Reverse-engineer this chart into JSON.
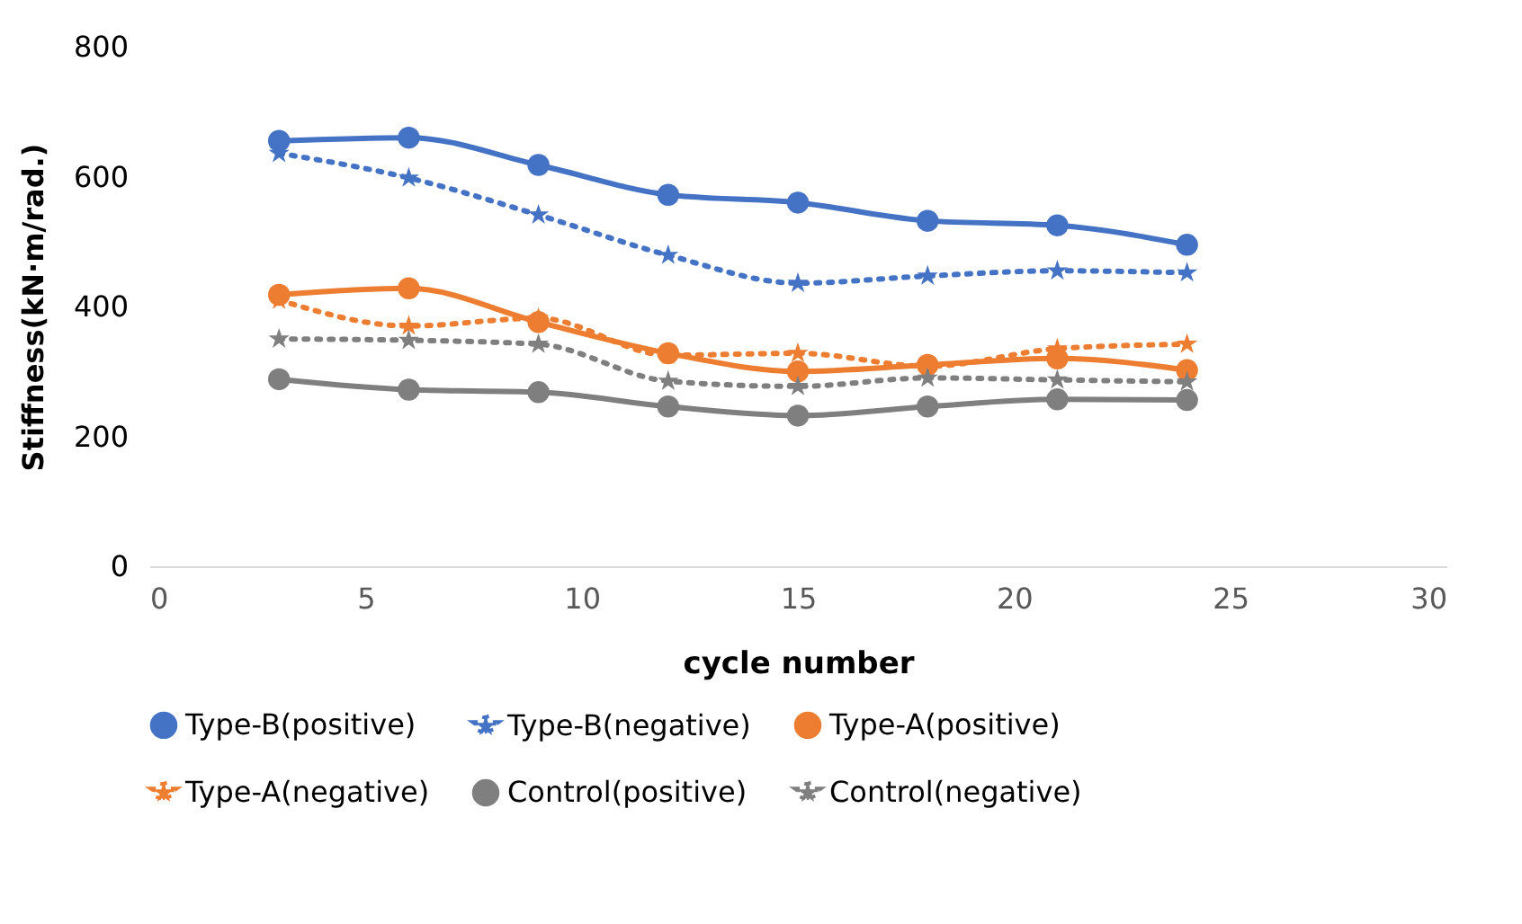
{
  "chart_data": {
    "type": "line",
    "xlabel": "cycle number",
    "ylabel": "Stiffness(kN·m/rad.)",
    "x": [
      3,
      6,
      9,
      12,
      15,
      18,
      21,
      24
    ],
    "xlim": [
      0,
      30
    ],
    "xticks": [
      0,
      5,
      10,
      15,
      20,
      25,
      30
    ],
    "ylim": [
      0,
      800
    ],
    "yticks": [
      0,
      200,
      400,
      600,
      800
    ],
    "grid": false,
    "legend": "bottom",
    "series": [
      {
        "name": "Type-B(positive)",
        "color": "#4472c4",
        "marker": "circle",
        "line_style": "solid",
        "values": [
          655,
          660,
          618,
          572,
          560,
          532,
          525,
          495
        ]
      },
      {
        "name": "Type-B(negative)",
        "color": "#4472c4",
        "marker": "star",
        "line_style": "dotted",
        "values": [
          636,
          598,
          541,
          479,
          436,
          447,
          455,
          452
        ]
      },
      {
        "name": "Type-A(positive)",
        "color": "#ed7d31",
        "marker": "circle",
        "line_style": "solid",
        "values": [
          418,
          428,
          376,
          328,
          300,
          310,
          320,
          302
        ]
      },
      {
        "name": "Type-A(negative)",
        "color": "#ed7d31",
        "marker": "star",
        "line_style": "dotted",
        "values": [
          410,
          370,
          382,
          325,
          328,
          308,
          335,
          342
        ]
      },
      {
        "name": "Control(positive)",
        "color": "#7f7f7f",
        "marker": "circle",
        "line_style": "solid",
        "values": [
          288,
          272,
          268,
          246,
          232,
          246,
          257,
          256
        ]
      },
      {
        "name": "Control(negative)",
        "color": "#7f7f7f",
        "marker": "star",
        "line_style": "dotted",
        "values": [
          350,
          348,
          342,
          285,
          277,
          290,
          287,
          284
        ]
      }
    ]
  }
}
